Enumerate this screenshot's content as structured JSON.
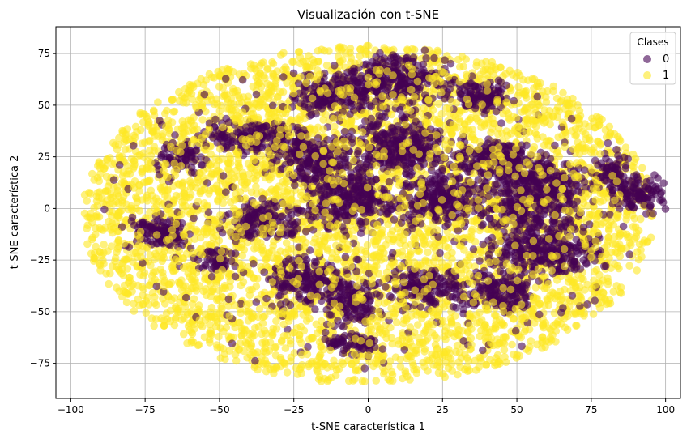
{
  "chart_data": {
    "type": "scatter",
    "title": "Visualización con t-SNE",
    "xlabel": "t-SNE característica 1",
    "ylabel": "t-SNE característica 2",
    "xlim": [
      -105,
      105
    ],
    "ylim": [
      -92,
      88
    ],
    "xticks": [
      -100,
      -75,
      -50,
      -25,
      0,
      25,
      50,
      75,
      100
    ],
    "yticks": [
      -75,
      -50,
      -25,
      0,
      25,
      50,
      75
    ],
    "grid": true,
    "legend": {
      "title": "Clases",
      "placement": "top-right"
    },
    "series": [
      {
        "name": "0",
        "color": "#440154"
      },
      {
        "name": "1",
        "color": "#fde725"
      }
    ],
    "ellipse_yellow": {
      "cx": 0,
      "cy": -3,
      "rx": 96,
      "ry": 82
    },
    "purple_clusters": [
      {
        "cx": 8,
        "cy": 62,
        "rx": 13,
        "ry": 9
      },
      {
        "cx": -12,
        "cy": 55,
        "rx": 10,
        "ry": 7
      },
      {
        "cx": 38,
        "cy": 55,
        "rx": 8,
        "ry": 6
      },
      {
        "cx": -38,
        "cy": 35,
        "rx": 12,
        "ry": 6
      },
      {
        "cx": -18,
        "cy": 25,
        "rx": 10,
        "ry": 9
      },
      {
        "cx": 10,
        "cy": 30,
        "rx": 12,
        "ry": 10
      },
      {
        "cx": 42,
        "cy": 25,
        "rx": 10,
        "ry": 6
      },
      {
        "cx": -62,
        "cy": 25,
        "rx": 6,
        "ry": 5
      },
      {
        "cx": -5,
        "cy": 5,
        "rx": 12,
        "ry": 10
      },
      {
        "cx": 25,
        "cy": 5,
        "rx": 10,
        "ry": 10
      },
      {
        "cx": 55,
        "cy": 8,
        "rx": 14,
        "ry": 14
      },
      {
        "cx": 60,
        "cy": -20,
        "rx": 14,
        "ry": 9
      },
      {
        "cx": -35,
        "cy": -5,
        "rx": 10,
        "ry": 7
      },
      {
        "cx": -70,
        "cy": -12,
        "rx": 8,
        "ry": 6
      },
      {
        "cx": -20,
        "cy": -35,
        "rx": 10,
        "ry": 8
      },
      {
        "cx": 20,
        "cy": -38,
        "rx": 9,
        "ry": 7
      },
      {
        "cx": 45,
        "cy": -40,
        "rx": 8,
        "ry": 8
      },
      {
        "cx": -5,
        "cy": -45,
        "rx": 7,
        "ry": 8
      },
      {
        "cx": -5,
        "cy": -65,
        "rx": 7,
        "ry": 4
      },
      {
        "cx": 90,
        "cy": 8,
        "rx": 7,
        "ry": 7
      },
      {
        "cx": 82,
        "cy": 18,
        "rx": 4,
        "ry": 6
      },
      {
        "cx": -52,
        "cy": -25,
        "rx": 5,
        "ry": 4
      }
    ]
  }
}
